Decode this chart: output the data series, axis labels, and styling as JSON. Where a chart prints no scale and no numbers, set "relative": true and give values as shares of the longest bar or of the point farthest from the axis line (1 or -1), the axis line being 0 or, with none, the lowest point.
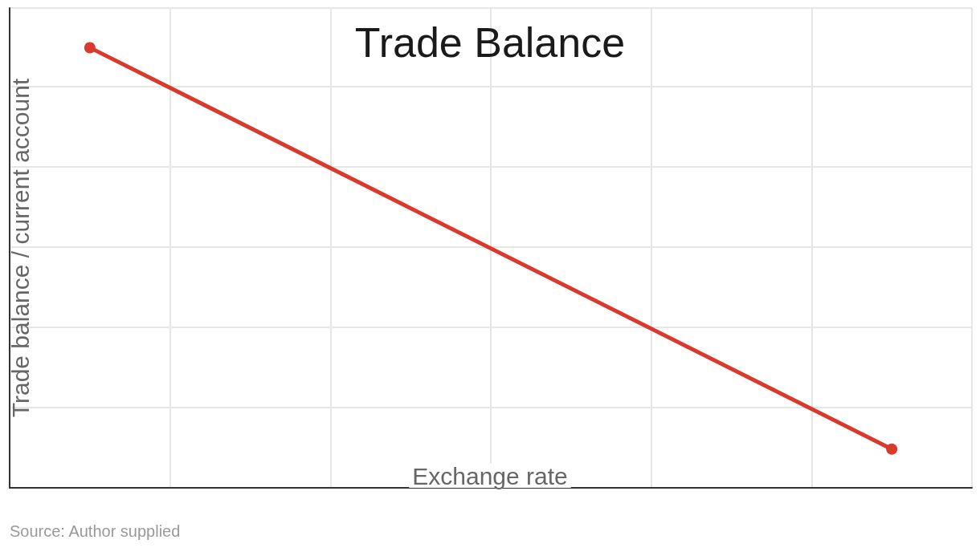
{
  "chart_data": {
    "type": "line",
    "title": "Trade Balance",
    "xlabel": "Exchange rate",
    "ylabel": "Trade balance / current account",
    "categories": [
      null,
      null,
      null,
      null,
      null,
      null,
      null,
      null,
      null,
      null,
      null,
      null,
      null
    ],
    "series": [
      {
        "color": "#d93a2b",
        "values": [
          null,
          1,
          null,
          null,
          null,
          null,
          null,
          null,
          null,
          null,
          null,
          0.088,
          null
        ]
      }
    ],
    "relative": true,
    "grid": true,
    "marker": "circle",
    "line_style": "solid",
    "annotations": [
      "Source: Author supplied"
    ]
  }
}
